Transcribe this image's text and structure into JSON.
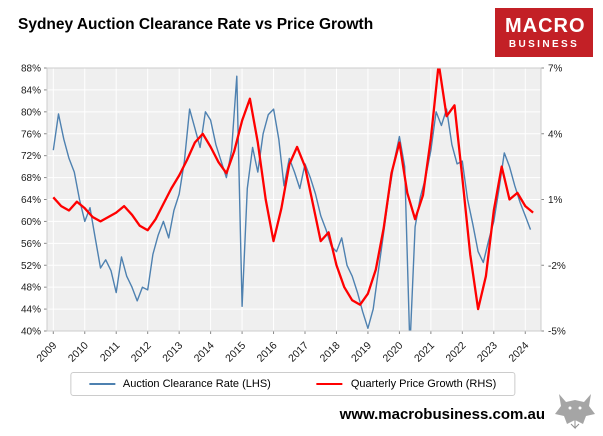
{
  "header": {
    "title": "Sydney Auction Clearance Rate vs Price Growth",
    "logo": {
      "line1": "MACRO",
      "line2": "BUSINESS",
      "bg_color": "#c32026"
    }
  },
  "footer": {
    "website": "www.macrobusiness.com.au"
  },
  "chart_data": {
    "type": "line",
    "title": "Sydney Auction Clearance Rate vs Price Growth",
    "x_min": 2008.8,
    "x_max": 2024.5,
    "x_ticks": [
      2009,
      2010,
      2011,
      2012,
      2013,
      2014,
      2015,
      2016,
      2017,
      2018,
      2019,
      2020,
      2021,
      2022,
      2023,
      2024
    ],
    "left_axis": {
      "min": 40,
      "max": 88,
      "step": 4,
      "unit": "%"
    },
    "right_axis": {
      "min": -5,
      "max": 7,
      "step": 3,
      "unit": "%"
    },
    "plot_bg": "#efefef",
    "grid_color": "#ffffff",
    "border_color": "#cccccc",
    "legend_position": "bottom",
    "series": [
      {
        "name": "Auction Clearance Rate (LHS)",
        "axis": "left",
        "color": "#4e81b0",
        "width": 1.4,
        "x_start": 2009.0,
        "x_step": 0.16667,
        "values": [
          73,
          79.6,
          75,
          71.5,
          69,
          64,
          60,
          62.5,
          57,
          51.5,
          53,
          51,
          47,
          53.5,
          50,
          48,
          45.5,
          48,
          47.5,
          54,
          57.5,
          60,
          57,
          62,
          65,
          71,
          80.5,
          77,
          73.5,
          80,
          78.5,
          74,
          71,
          68,
          73,
          86.5,
          44.5,
          66,
          73.5,
          69,
          76,
          79.5,
          80.5,
          75,
          66.5,
          71.5,
          69,
          66,
          70.5,
          68,
          65,
          61,
          58.5,
          55.5,
          54.5,
          57,
          52,
          50,
          47,
          43.5,
          40.5,
          44,
          51,
          58,
          65,
          71,
          75.5,
          70,
          37,
          59,
          64.5,
          68,
          73,
          80,
          77.5,
          80.5,
          74,
          70.5,
          71,
          64,
          59.5,
          54.5,
          52.5,
          56.5,
          60,
          66,
          72.5,
          70,
          66.5,
          63.5,
          61,
          58.5
        ]
      },
      {
        "name": "Quarterly Price Growth (RHS)",
        "axis": "right",
        "color": "#ff0000",
        "width": 2.3,
        "x_start": 2009.0,
        "x_step": 0.25,
        "values": [
          1.1,
          0.7,
          0.5,
          0.9,
          0.6,
          0.2,
          0.0,
          0.2,
          0.4,
          0.7,
          0.3,
          -0.2,
          -0.4,
          0.1,
          0.8,
          1.5,
          2.1,
          2.8,
          3.6,
          4.0,
          3.4,
          2.7,
          2.2,
          3.2,
          4.6,
          5.6,
          3.6,
          1.0,
          -0.9,
          0.6,
          2.6,
          3.4,
          2.5,
          0.8,
          -0.9,
          -0.5,
          -2.0,
          -3.0,
          -3.6,
          -3.8,
          -3.3,
          -2.2,
          -0.3,
          2.2,
          3.6,
          1.3,
          0.1,
          1.2,
          3.8,
          7.2,
          4.8,
          5.3,
          2.0,
          -1.5,
          -4.0,
          -2.5,
          0.5,
          2.5,
          1.0,
          1.3,
          0.7,
          0.4
        ]
      }
    ]
  }
}
